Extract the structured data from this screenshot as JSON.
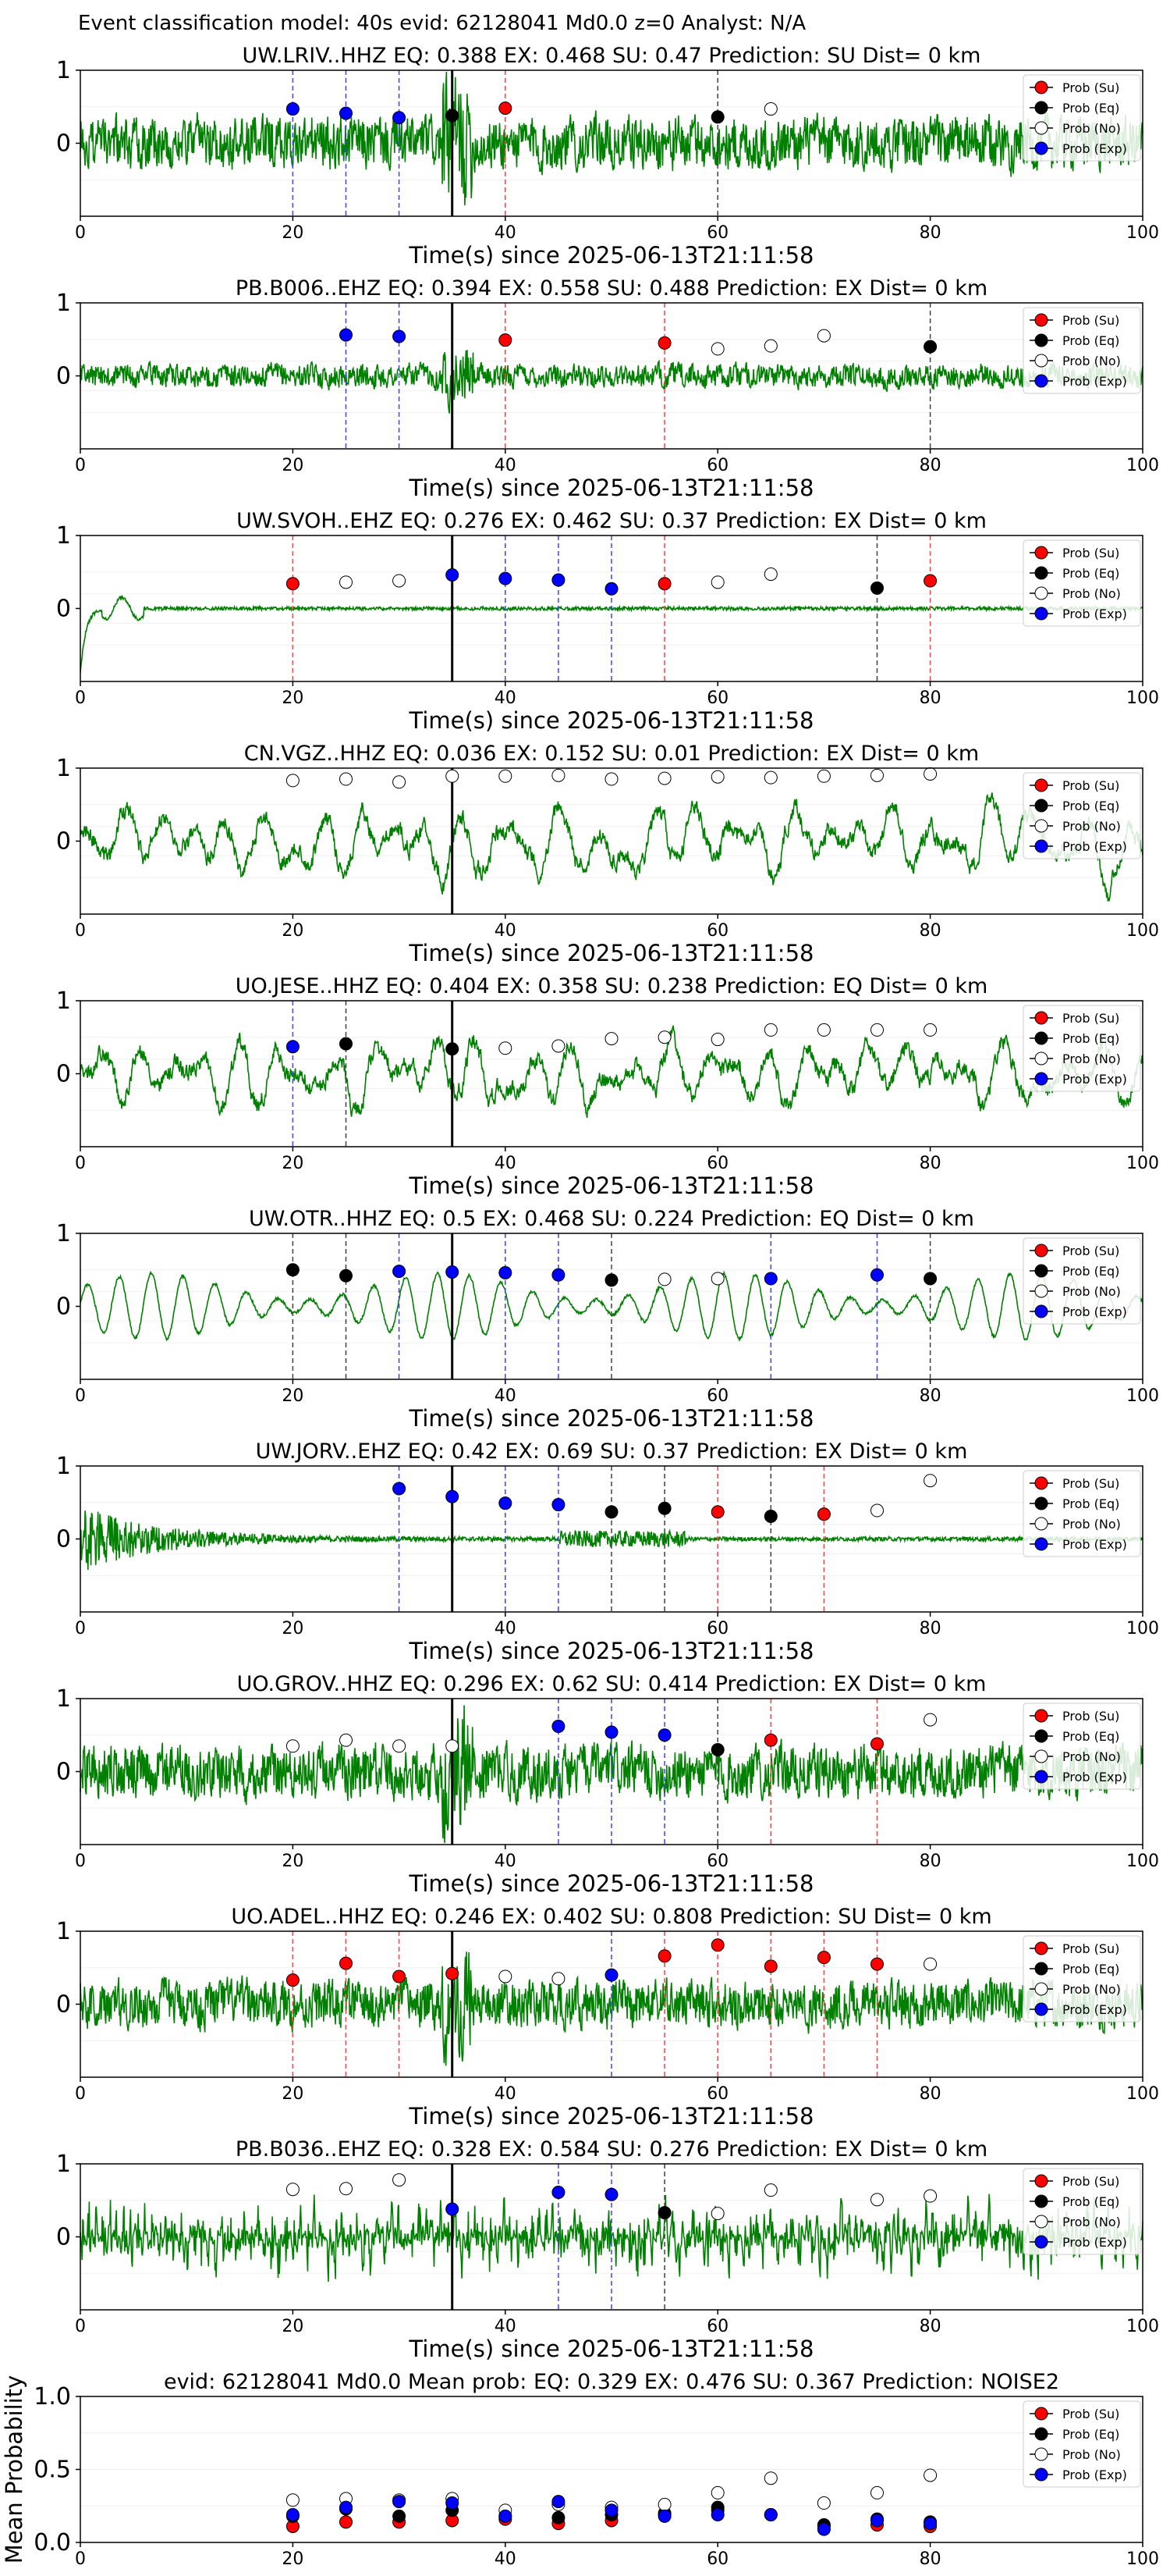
{
  "figure_title": "Event classification model: 40s evid: 62128041 Md0.0 z=0 Analyst: N/A",
  "colors": {
    "su": "#ff0000",
    "eq": "#000000",
    "no": "#ffffff",
    "exp": "#0000ff",
    "trace": "#008000"
  },
  "legend": [
    "Prob (Su)",
    "Prob (Eq)",
    "Prob (No)",
    "Prob (Exp)"
  ],
  "chart_data": [
    {
      "type": "line",
      "title": "UW.LRIV..HHZ   EQ: 0.388  EX: 0.468  SU: 0.47   Prediction: SU    Dist= 0 km",
      "xlabel": "Time(s) since 2025-06-13T21:11:58",
      "xlim": [
        0,
        100
      ],
      "xticks": [
        0,
        20,
        40,
        60,
        80,
        100
      ],
      "yticks": [
        0,
        1
      ],
      "ylim": [
        -1,
        1
      ],
      "origin_line": 35,
      "amp": 0.45,
      "seed": 3,
      "style": "noisy",
      "markers": [
        {
          "t": 20,
          "cls": "exp",
          "p": 0.47
        },
        {
          "t": 25,
          "cls": "exp",
          "p": 0.41
        },
        {
          "t": 30,
          "cls": "exp",
          "p": 0.35
        },
        {
          "t": 35,
          "cls": "eq",
          "p": 0.38
        },
        {
          "t": 40,
          "cls": "su",
          "p": 0.48
        },
        {
          "t": 60,
          "cls": "eq",
          "p": 0.36
        },
        {
          "t": 65,
          "cls": "no",
          "p": 0.47
        }
      ]
    },
    {
      "type": "line",
      "title": "PB.B006..EHZ   EQ: 0.394  EX: 0.558  SU: 0.488   Prediction: EX    Dist= 0 km",
      "xlabel": "Time(s) since 2025-06-13T21:11:58",
      "xlim": [
        0,
        100
      ],
      "xticks": [
        0,
        20,
        40,
        60,
        80,
        100
      ],
      "yticks": [
        0,
        1
      ],
      "ylim": [
        -1,
        1
      ],
      "origin_line": 35,
      "amp": 0.2,
      "seed": 7,
      "style": "noisy",
      "markers": [
        {
          "t": 25,
          "cls": "exp",
          "p": 0.56
        },
        {
          "t": 30,
          "cls": "exp",
          "p": 0.54
        },
        {
          "t": 40,
          "cls": "su",
          "p": 0.49
        },
        {
          "t": 55,
          "cls": "su",
          "p": 0.45
        },
        {
          "t": 60,
          "cls": "no",
          "p": 0.37
        },
        {
          "t": 65,
          "cls": "no",
          "p": 0.41
        },
        {
          "t": 70,
          "cls": "no",
          "p": 0.55
        },
        {
          "t": 80,
          "cls": "eq",
          "p": 0.4
        }
      ]
    },
    {
      "type": "line",
      "title": "UW.SVOH..EHZ   EQ: 0.276  EX: 0.462  SU: 0.37   Prediction: EX    Dist= 0 km",
      "xlabel": "Time(s) since 2025-06-13T21:11:58",
      "xlim": [
        0,
        100
      ],
      "xticks": [
        0,
        20,
        40,
        60,
        80,
        100
      ],
      "yticks": [
        0,
        1
      ],
      "ylim": [
        -1,
        1
      ],
      "origin_line": 35,
      "amp": 0.06,
      "seed": 11,
      "style": "quiet",
      "markers": [
        {
          "t": 20,
          "cls": "su",
          "p": 0.34
        },
        {
          "t": 25,
          "cls": "no",
          "p": 0.36
        },
        {
          "t": 30,
          "cls": "no",
          "p": 0.38
        },
        {
          "t": 35,
          "cls": "exp",
          "p": 0.46
        },
        {
          "t": 40,
          "cls": "exp",
          "p": 0.41
        },
        {
          "t": 45,
          "cls": "exp",
          "p": 0.39
        },
        {
          "t": 50,
          "cls": "exp",
          "p": 0.27
        },
        {
          "t": 55,
          "cls": "su",
          "p": 0.34
        },
        {
          "t": 60,
          "cls": "no",
          "p": 0.36
        },
        {
          "t": 65,
          "cls": "no",
          "p": 0.47
        },
        {
          "t": 75,
          "cls": "eq",
          "p": 0.28
        },
        {
          "t": 80,
          "cls": "su",
          "p": 0.38
        }
      ]
    },
    {
      "type": "line",
      "title": "CN.VGZ..HHZ   EQ: 0.036  EX: 0.152  SU: 0.01   Prediction: EX    Dist= 0 km",
      "xlabel": "Time(s) since 2025-06-13T21:11:58",
      "xlim": [
        0,
        100
      ],
      "xticks": [
        0,
        20,
        40,
        60,
        80,
        100
      ],
      "yticks": [
        0,
        1
      ],
      "ylim": [
        -1,
        1
      ],
      "origin_line": 35,
      "amp": 0.6,
      "seed": 13,
      "style": "wavy",
      "markers": [
        {
          "t": 20,
          "cls": "no",
          "p": 0.83
        },
        {
          "t": 25,
          "cls": "no",
          "p": 0.85
        },
        {
          "t": 30,
          "cls": "no",
          "p": 0.81
        },
        {
          "t": 35,
          "cls": "no",
          "p": 0.89
        },
        {
          "t": 40,
          "cls": "no",
          "p": 0.89
        },
        {
          "t": 45,
          "cls": "no",
          "p": 0.9
        },
        {
          "t": 50,
          "cls": "no",
          "p": 0.85
        },
        {
          "t": 55,
          "cls": "no",
          "p": 0.86
        },
        {
          "t": 60,
          "cls": "no",
          "p": 0.88
        },
        {
          "t": 65,
          "cls": "no",
          "p": 0.87
        },
        {
          "t": 70,
          "cls": "no",
          "p": 0.89
        },
        {
          "t": 75,
          "cls": "no",
          "p": 0.9
        },
        {
          "t": 80,
          "cls": "no",
          "p": 0.92
        }
      ]
    },
    {
      "type": "line",
      "title": "UO.JESE..HHZ   EQ: 0.404  EX: 0.358  SU: 0.238   Prediction: EQ    Dist= 0 km",
      "xlabel": "Time(s) since 2025-06-13T21:11:58",
      "xlim": [
        0,
        100
      ],
      "xticks": [
        0,
        20,
        40,
        60,
        80,
        100
      ],
      "yticks": [
        0,
        1
      ],
      "ylim": [
        -1,
        1
      ],
      "origin_line": 35,
      "amp": 0.6,
      "seed": 17,
      "style": "wavy",
      "markers": [
        {
          "t": 20,
          "cls": "exp",
          "p": 0.37
        },
        {
          "t": 25,
          "cls": "eq",
          "p": 0.41
        },
        {
          "t": 35,
          "cls": "eq",
          "p": 0.34
        },
        {
          "t": 40,
          "cls": "no",
          "p": 0.35
        },
        {
          "t": 45,
          "cls": "no",
          "p": 0.38
        },
        {
          "t": 50,
          "cls": "no",
          "p": 0.48
        },
        {
          "t": 55,
          "cls": "no",
          "p": 0.5
        },
        {
          "t": 60,
          "cls": "no",
          "p": 0.47
        },
        {
          "t": 65,
          "cls": "no",
          "p": 0.6
        },
        {
          "t": 70,
          "cls": "no",
          "p": 0.6
        },
        {
          "t": 75,
          "cls": "no",
          "p": 0.6
        },
        {
          "t": 80,
          "cls": "no",
          "p": 0.6
        }
      ]
    },
    {
      "type": "line",
      "title": "UW.OTR..HHZ   EQ: 0.5  EX: 0.468  SU: 0.224   Prediction: EQ    Dist= 0 km",
      "xlabel": "Time(s) since 2025-06-13T21:11:58",
      "xlim": [
        0,
        100
      ],
      "xticks": [
        0,
        20,
        40,
        60,
        80,
        100
      ],
      "yticks": [
        0,
        1
      ],
      "ylim": [
        -1,
        1
      ],
      "origin_line": 35,
      "amp": 0.5,
      "seed": 19,
      "style": "smooth",
      "markers": [
        {
          "t": 20,
          "cls": "eq",
          "p": 0.5
        },
        {
          "t": 25,
          "cls": "eq",
          "p": 0.42
        },
        {
          "t": 30,
          "cls": "exp",
          "p": 0.48
        },
        {
          "t": 35,
          "cls": "exp",
          "p": 0.47
        },
        {
          "t": 40,
          "cls": "exp",
          "p": 0.46
        },
        {
          "t": 45,
          "cls": "exp",
          "p": 0.43
        },
        {
          "t": 50,
          "cls": "eq",
          "p": 0.36
        },
        {
          "t": 55,
          "cls": "no",
          "p": 0.37
        },
        {
          "t": 60,
          "cls": "no",
          "p": 0.38
        },
        {
          "t": 65,
          "cls": "exp",
          "p": 0.38
        },
        {
          "t": 75,
          "cls": "exp",
          "p": 0.43
        },
        {
          "t": 80,
          "cls": "eq",
          "p": 0.38
        }
      ]
    },
    {
      "type": "line",
      "title": "UW.JORV..EHZ   EQ: 0.42  EX: 0.69  SU: 0.37   Prediction: EX    Dist= 0 km",
      "xlabel": "Time(s) since 2025-06-13T21:11:58",
      "xlim": [
        0,
        100
      ],
      "xticks": [
        0,
        20,
        40,
        60,
        80,
        100
      ],
      "yticks": [
        0,
        1
      ],
      "ylim": [
        -1,
        1
      ],
      "origin_line": 35,
      "amp": 0.7,
      "seed": 23,
      "style": "decay",
      "markers": [
        {
          "t": 30,
          "cls": "exp",
          "p": 0.69
        },
        {
          "t": 35,
          "cls": "exp",
          "p": 0.58
        },
        {
          "t": 40,
          "cls": "exp",
          "p": 0.49
        },
        {
          "t": 45,
          "cls": "exp",
          "p": 0.47
        },
        {
          "t": 50,
          "cls": "eq",
          "p": 0.37
        },
        {
          "t": 55,
          "cls": "eq",
          "p": 0.42
        },
        {
          "t": 60,
          "cls": "su",
          "p": 0.37
        },
        {
          "t": 65,
          "cls": "eq",
          "p": 0.31
        },
        {
          "t": 70,
          "cls": "su",
          "p": 0.34
        },
        {
          "t": 75,
          "cls": "no",
          "p": 0.39
        },
        {
          "t": 80,
          "cls": "no",
          "p": 0.8
        }
      ]
    },
    {
      "type": "line",
      "title": "UO.GROV..HHZ   EQ: 0.296  EX: 0.62  SU: 0.414   Prediction: EX    Dist= 0 km",
      "xlabel": "Time(s) since 2025-06-13T21:11:58",
      "xlim": [
        0,
        100
      ],
      "xticks": [
        0,
        20,
        40,
        60,
        80,
        100
      ],
      "yticks": [
        0,
        1
      ],
      "ylim": [
        -1,
        1
      ],
      "origin_line": 35,
      "amp": 0.45,
      "seed": 29,
      "style": "noisy",
      "markers": [
        {
          "t": 20,
          "cls": "no",
          "p": 0.35
        },
        {
          "t": 25,
          "cls": "no",
          "p": 0.43
        },
        {
          "t": 30,
          "cls": "no",
          "p": 0.35
        },
        {
          "t": 35,
          "cls": "no",
          "p": 0.35
        },
        {
          "t": 45,
          "cls": "exp",
          "p": 0.62
        },
        {
          "t": 50,
          "cls": "exp",
          "p": 0.54
        },
        {
          "t": 55,
          "cls": "exp",
          "p": 0.5
        },
        {
          "t": 60,
          "cls": "eq",
          "p": 0.3
        },
        {
          "t": 65,
          "cls": "su",
          "p": 0.43
        },
        {
          "t": 75,
          "cls": "su",
          "p": 0.38
        },
        {
          "t": 80,
          "cls": "no",
          "p": 0.71
        }
      ]
    },
    {
      "type": "line",
      "title": "UO.ADEL..HHZ   EQ: 0.246  EX: 0.402  SU: 0.808   Prediction: SU    Dist= 0 km",
      "xlabel": "Time(s) since 2025-06-13T21:11:58",
      "xlim": [
        0,
        100
      ],
      "xticks": [
        0,
        20,
        40,
        60,
        80,
        100
      ],
      "yticks": [
        0,
        1
      ],
      "ylim": [
        -1,
        1
      ],
      "origin_line": 35,
      "amp": 0.4,
      "seed": 31,
      "style": "noisy",
      "markers": [
        {
          "t": 20,
          "cls": "su",
          "p": 0.33
        },
        {
          "t": 25,
          "cls": "su",
          "p": 0.56
        },
        {
          "t": 30,
          "cls": "su",
          "p": 0.38
        },
        {
          "t": 35,
          "cls": "su",
          "p": 0.42
        },
        {
          "t": 40,
          "cls": "no",
          "p": 0.38
        },
        {
          "t": 45,
          "cls": "no",
          "p": 0.35
        },
        {
          "t": 50,
          "cls": "exp",
          "p": 0.4
        },
        {
          "t": 55,
          "cls": "su",
          "p": 0.66
        },
        {
          "t": 60,
          "cls": "su",
          "p": 0.81
        },
        {
          "t": 65,
          "cls": "su",
          "p": 0.52
        },
        {
          "t": 70,
          "cls": "su",
          "p": 0.64
        },
        {
          "t": 75,
          "cls": "su",
          "p": 0.55
        },
        {
          "t": 80,
          "cls": "no",
          "p": 0.55
        }
      ]
    },
    {
      "type": "line",
      "title": "PB.B036..EHZ   EQ: 0.328  EX: 0.584  SU: 0.276   Prediction: EX    Dist= 0 km",
      "xlabel": "Time(s) since 2025-06-13T21:11:58",
      "xlim": [
        0,
        100
      ],
      "xticks": [
        0,
        20,
        40,
        60,
        80,
        100
      ],
      "yticks": [
        0,
        1
      ],
      "ylim": [
        -1,
        1
      ],
      "origin_line": 35,
      "amp": 0.65,
      "seed": 37,
      "style": "dense",
      "markers": [
        {
          "t": 20,
          "cls": "no",
          "p": 0.65
        },
        {
          "t": 25,
          "cls": "no",
          "p": 0.66
        },
        {
          "t": 30,
          "cls": "no",
          "p": 0.78
        },
        {
          "t": 35,
          "cls": "exp",
          "p": 0.38
        },
        {
          "t": 45,
          "cls": "exp",
          "p": 0.61
        },
        {
          "t": 50,
          "cls": "exp",
          "p": 0.58
        },
        {
          "t": 55,
          "cls": "eq",
          "p": 0.33
        },
        {
          "t": 60,
          "cls": "no",
          "p": 0.32
        },
        {
          "t": 65,
          "cls": "no",
          "p": 0.64
        },
        {
          "t": 75,
          "cls": "no",
          "p": 0.51
        },
        {
          "t": 80,
          "cls": "no",
          "p": 0.56
        }
      ]
    },
    {
      "type": "scatter",
      "title": "evid: 62128041  Md0.0   Mean prob:   EQ: 0.329  EX: 0.476  SU: 0.367   Prediction: NOISE2",
      "xlabel": "",
      "ylabel": "Mean Probability",
      "xlim": [
        0,
        100
      ],
      "ylim": [
        0,
        1
      ],
      "xticks": [
        0,
        20,
        40,
        60,
        80,
        100
      ],
      "yticks": [
        0,
        0.5,
        1
      ],
      "ytick_labels": [
        "0.0",
        "0.5",
        "1.0"
      ],
      "series": [
        {
          "name": "Prob (Su)",
          "cls": "su",
          "x": [
            20,
            25,
            30,
            35,
            40,
            45,
            50,
            55,
            60,
            65,
            70,
            75,
            80
          ],
          "y": [
            0.11,
            0.14,
            0.14,
            0.15,
            0.16,
            0.13,
            0.15,
            0.19,
            0.22,
            0.19,
            0.11,
            0.12,
            0.11
          ]
        },
        {
          "name": "Prob (Eq)",
          "cls": "eq",
          "x": [
            20,
            25,
            30,
            35,
            40,
            45,
            50,
            55,
            60,
            65,
            70,
            75,
            80
          ],
          "y": [
            0.18,
            0.23,
            0.18,
            0.22,
            0.18,
            0.17,
            0.19,
            0.2,
            0.24,
            0.19,
            0.12,
            0.16,
            0.14
          ]
        },
        {
          "name": "Prob (No)",
          "cls": "no",
          "x": [
            20,
            25,
            30,
            35,
            40,
            45,
            50,
            55,
            60,
            65,
            70,
            75,
            80
          ],
          "y": [
            0.29,
            0.3,
            0.29,
            0.3,
            0.22,
            0.26,
            0.24,
            0.26,
            0.34,
            0.44,
            0.27,
            0.34,
            0.46
          ]
        },
        {
          "name": "Prob (Exp)",
          "cls": "exp",
          "x": [
            20,
            25,
            30,
            35,
            40,
            45,
            50,
            55,
            60,
            65,
            70,
            75,
            80
          ],
          "y": [
            0.19,
            0.24,
            0.28,
            0.27,
            0.18,
            0.28,
            0.22,
            0.18,
            0.19,
            0.19,
            0.09,
            0.15,
            0.13
          ]
        }
      ]
    }
  ]
}
